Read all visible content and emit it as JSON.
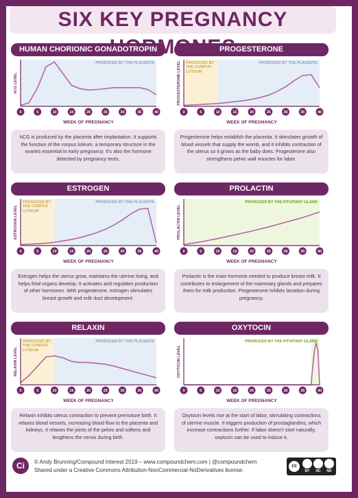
{
  "title": "SIX KEY PREGNANCY HORMONES",
  "chart_data": [
    {
      "type": "line",
      "title": "HUMAN CHORIONIC GONADOTROPIN (hCG)",
      "ylabel": "hCG LEVEL",
      "xlabel": "WEEK OF PREGNANCY",
      "x": [
        0,
        2.5,
        5,
        7.5,
        10,
        12.5,
        15,
        17.5,
        20,
        22.5,
        25,
        27.5,
        30,
        32.5,
        35,
        37.5,
        40
      ],
      "values": [
        2,
        8,
        40,
        85,
        95,
        70,
        45,
        38,
        35,
        36,
        38,
        40,
        40,
        40,
        40,
        36,
        25
      ],
      "color": "#b265a8",
      "xlim": [
        0,
        40
      ],
      "ylim": [
        0,
        100
      ],
      "xticks": [
        0,
        5,
        10,
        15,
        20,
        25,
        30,
        35,
        40
      ],
      "regions": [
        {
          "label": "PRODUCED BY THE PLACENTA",
          "x": [
            0,
            40
          ],
          "color": "#e5edf7"
        }
      ],
      "caption": "hCG is produced by the placenta after implantation. It supports the function of the corpus luteum, a temporary structure in the ovaries essential in early pregnancy. It's also the hormone detected by pregnancy tests."
    },
    {
      "type": "line",
      "title": "PROGESTERONE",
      "ylabel": "PROGESTERONE LEVEL",
      "xlabel": "WEEK OF PREGNANCY",
      "x": [
        0,
        2.5,
        5,
        7.5,
        10,
        12.5,
        15,
        17.5,
        20,
        22.5,
        25,
        27.5,
        30,
        32.5,
        35,
        37.5,
        40
      ],
      "values": [
        2,
        3,
        4,
        5,
        6,
        8,
        10,
        12,
        15,
        19,
        24,
        32,
        42,
        55,
        66,
        68,
        40
      ],
      "color": "#b265a8",
      "xlim": [
        0,
        40
      ],
      "ylim": [
        0,
        100
      ],
      "xticks": [
        0,
        5,
        10,
        15,
        20,
        25,
        30,
        35,
        40
      ],
      "regions": [
        {
          "label": "PRODUCED BY THE CORPUS LUTEUM",
          "x": [
            0,
            10
          ],
          "color": "#fbf0d3"
        },
        {
          "label": "PRODUCED BY THE PLACENTA",
          "x": [
            10,
            40
          ],
          "color": "#e5edf7"
        }
      ],
      "caption": "Progesterone helps establish the placenta. It stimulates growth of blood vessels that supply the womb, and it inhibits contraction of the uterus so it grows as the baby does. Progesterone also strengthens pelvic wall muscles for labor."
    },
    {
      "type": "line",
      "title": "ESTROGEN",
      "ylabel": "ESTROGEN LEVEL",
      "xlabel": "WEEK OF PREGNANCY",
      "x": [
        0,
        2.5,
        5,
        7.5,
        10,
        12.5,
        15,
        17.5,
        20,
        22.5,
        25,
        27.5,
        30,
        32.5,
        35,
        37.5,
        40
      ],
      "values": [
        2,
        3,
        4,
        5,
        7,
        10,
        13,
        17,
        22,
        28,
        35,
        44,
        55,
        68,
        78,
        80,
        5
      ],
      "color": "#b265a8",
      "xlim": [
        0,
        40
      ],
      "ylim": [
        0,
        100
      ],
      "xticks": [
        0,
        5,
        10,
        15,
        20,
        25,
        30,
        35,
        40
      ],
      "regions": [
        {
          "label": "PRODUCED BY THE CORPUS LUTEUM",
          "x": [
            0,
            10
          ],
          "color": "#fbf0d3"
        },
        {
          "label": "PRODUCED BY THE PLACENTA",
          "x": [
            10,
            40
          ],
          "color": "#e5edf7"
        }
      ],
      "caption": "Estrogen helps the uterus grow, maintains the uterine lining, and helps fetal organs develop. It activates and regulates production of other hormones. With progesterone, estrogen stimulates breast growth and milk duct development."
    },
    {
      "type": "line",
      "title": "PROLACTIN",
      "ylabel": "PROLACTIN LEVEL",
      "xlabel": "WEEK OF PREGNANCY",
      "x": [
        0,
        5,
        10,
        15,
        20,
        25,
        30,
        35,
        40
      ],
      "values": [
        2,
        8,
        15,
        23,
        31,
        40,
        50,
        60,
        72
      ],
      "color": "#b265a8",
      "xlim": [
        0,
        40
      ],
      "ylim": [
        0,
        100
      ],
      "xticks": [
        0,
        5,
        10,
        15,
        20,
        25,
        30,
        35,
        40
      ],
      "regions": [
        {
          "label": "PRODUCED BY THE PITUITARY GLAND",
          "x": [
            0,
            40
          ],
          "color": "#eef6dd"
        }
      ],
      "caption": "Prolactin is the main hormone needed to produce breast milk. It contributes to enlargement of the mammary glands and prepares them for milk production. Progesterone inhibits lactation during pregnancy."
    },
    {
      "type": "line",
      "title": "RELAXIN",
      "ylabel": "RELAXIN LEVEL",
      "xlabel": "WEEK OF PREGNANCY",
      "x": [
        0,
        2.5,
        5,
        7.5,
        10,
        12.5,
        15,
        17.5,
        20,
        22.5,
        25,
        27.5,
        30,
        32.5,
        35,
        37.5,
        40
      ],
      "values": [
        5,
        20,
        40,
        60,
        62,
        58,
        50,
        48,
        48,
        46,
        44,
        40,
        35,
        30,
        25,
        20,
        15
      ],
      "color": "#b265a8",
      "xlim": [
        0,
        40
      ],
      "ylim": [
        0,
        100
      ],
      "xticks": [
        0,
        5,
        10,
        15,
        20,
        25,
        30,
        35,
        40
      ],
      "regions": [
        {
          "label": "PRODUCED BY THE CORPUS LUTEUM",
          "x": [
            0,
            10
          ],
          "color": "#fbf0d3"
        },
        {
          "label": "PRODUCED BY THE PLACENTA",
          "x": [
            10,
            40
          ],
          "color": "#e5edf7"
        }
      ],
      "caption": "Relaxin inhibits uterus contraction to prevent premature birth. It relaxes blood vessels, increasing blood flow to the placenta and kidneys. It relaxes the joints of the pelvis and softens and lengthens the cervix during birth."
    },
    {
      "type": "line",
      "title": "OXYTOCIN",
      "ylabel": "OXYTOCIN LEVEL",
      "xlabel": "WEEK OF PREGNANCY",
      "x": [
        0,
        37.5,
        38,
        38.5,
        39,
        39.5,
        40
      ],
      "values": [
        0,
        0,
        40,
        75,
        90,
        75,
        0
      ],
      "color": "#b265a8",
      "xlim": [
        0,
        40
      ],
      "ylim": [
        0,
        100
      ],
      "xticks": [
        0,
        5,
        10,
        15,
        20,
        25,
        30,
        35,
        40
      ],
      "regions": [
        {
          "label": "PRODUCED BY THE PITUITARY GLAND",
          "x": [
            37.5,
            40
          ],
          "color": "#eef6dd"
        }
      ],
      "caption": "Oxytocin levels rise at the start of labor, stimulating contractions of uterine muscle. It triggers production of prostaglandins, which increase contractions further. If labor doesn't start naturally, oxytocin can be used to induce it."
    }
  ],
  "footer": {
    "logo": "Ci",
    "credit": "© Andy Brunning/Compound Interest 2019 – www.compoundchem.com | @compoundchem",
    "license": "Shared under a Creative Commons Attribution-NonCommercial-NoDerivatives license.",
    "cc": "cc",
    "badges": [
      "BY",
      "NC",
      "ND"
    ]
  }
}
